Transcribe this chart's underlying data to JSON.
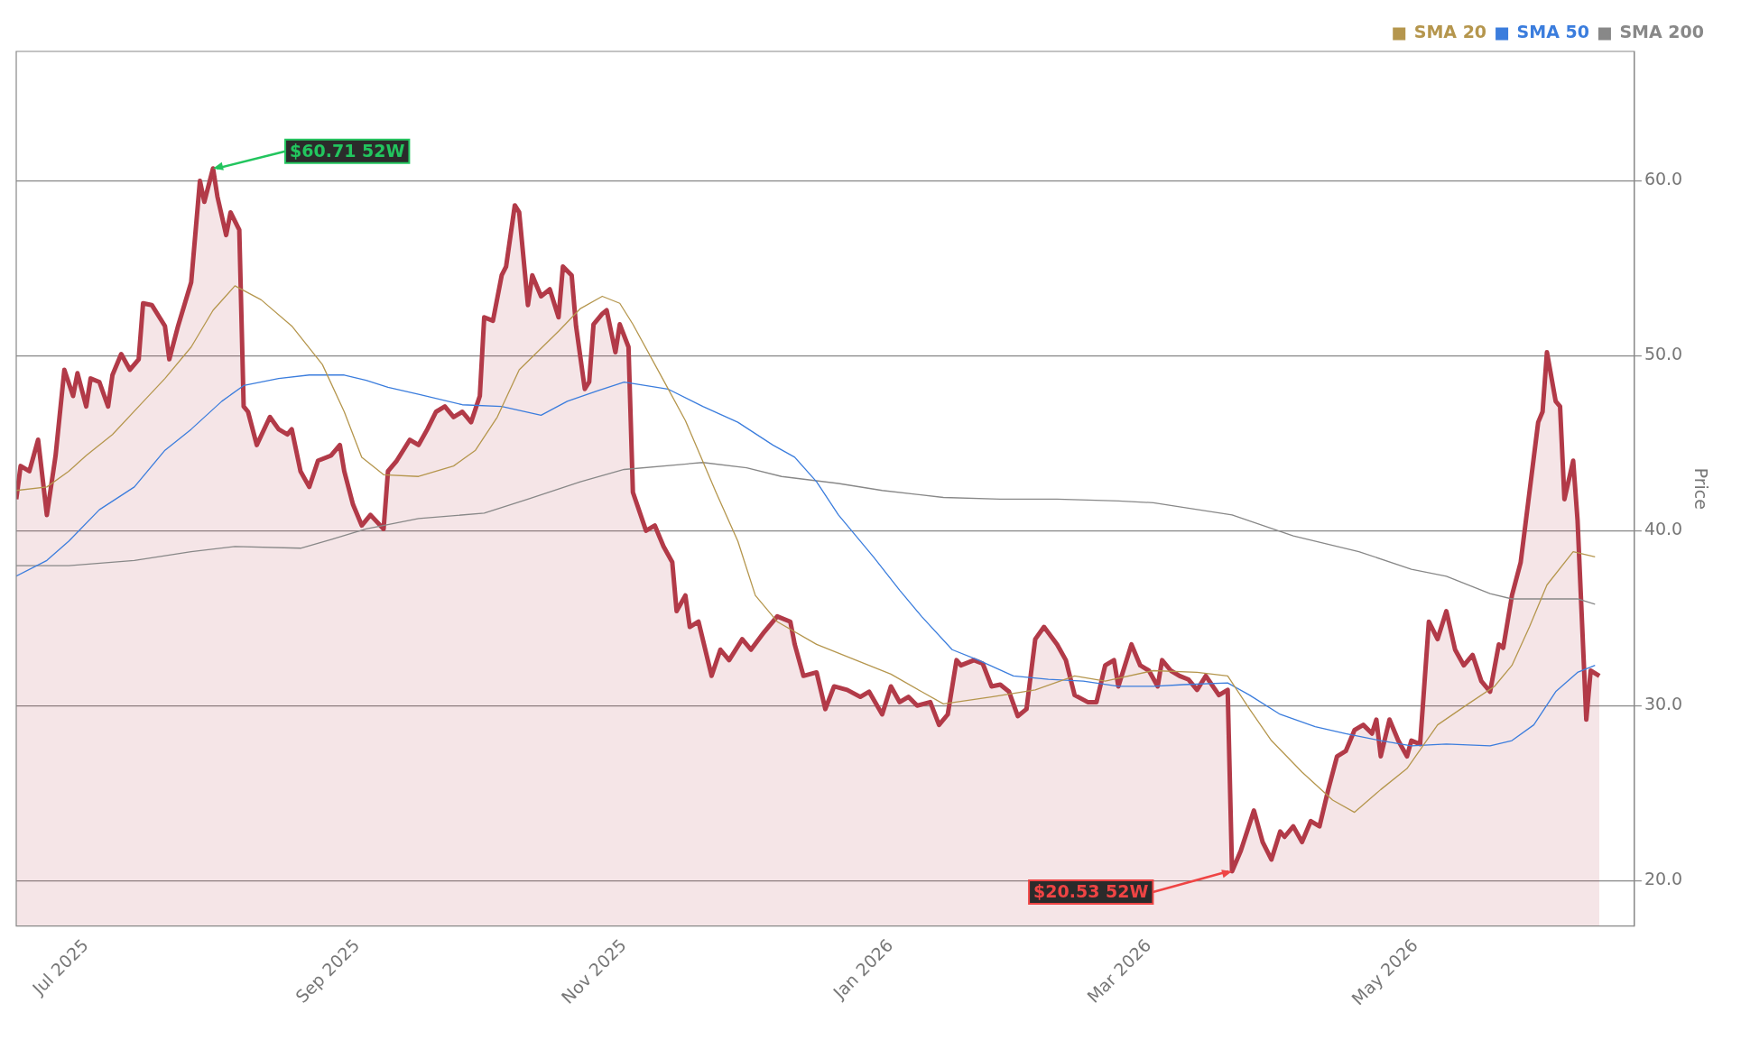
{
  "chart_data": {
    "type": "line",
    "ylabel": "Price",
    "xlim": [
      "2025-06-15",
      "2026-06-20"
    ],
    "ylim": [
      17.4,
      67.4
    ],
    "xticks": [
      {
        "value": "2025-07-01",
        "label": "Jul 2025"
      },
      {
        "value": "2025-09-01",
        "label": "Sep 2025"
      },
      {
        "value": "2025-11-01",
        "label": "Nov 2025"
      },
      {
        "value": "2026-01-01",
        "label": "Jan 2026"
      },
      {
        "value": "2026-03-01",
        "label": "Mar 2026"
      },
      {
        "value": "2026-05-01",
        "label": "May 2026"
      }
    ],
    "yticks": [
      {
        "value": 20,
        "label": "20.0"
      },
      {
        "value": 30,
        "label": "30.0"
      },
      {
        "value": 40,
        "label": "40.0"
      },
      {
        "value": 50,
        "label": "50.0"
      },
      {
        "value": 60,
        "label": "60.0"
      }
    ],
    "grid": "y",
    "legend": "top right",
    "marker": "none",
    "line_style": "solid",
    "annotations": [
      {
        "text": "$60.71 52W",
        "x": "2025-07-30",
        "y": 60.71
      },
      {
        "text": "$20.53 52W",
        "x": "2026-03-20",
        "y": 20.53
      }
    ],
    "series": [
      {
        "type": "area",
        "color": "#b23a48",
        "x": [
          "2025-06-15",
          "2025-06-16",
          "2025-06-18",
          "2025-06-20",
          "2025-06-22",
          "2025-06-24",
          "2025-06-26",
          "2025-06-28",
          "2025-06-29",
          "2025-07-01",
          "2025-07-02",
          "2025-07-04",
          "2025-07-06",
          "2025-07-07",
          "2025-07-09",
          "2025-07-11",
          "2025-07-13",
          "2025-07-14",
          "2025-07-16",
          "2025-07-19",
          "2025-07-20",
          "2025-07-22",
          "2025-07-25",
          "2025-07-27",
          "2025-07-28",
          "2025-07-30",
          "2025-07-31",
          "2025-08-02",
          "2025-08-03",
          "2025-08-05",
          "2025-08-06",
          "2025-08-07",
          "2025-08-09",
          "2025-08-12",
          "2025-08-14",
          "2025-08-16",
          "2025-08-17",
          "2025-08-19",
          "2025-08-21",
          "2025-08-23",
          "2025-08-26",
          "2025-08-28",
          "2025-08-29",
          "2025-08-31",
          "2025-09-02",
          "2025-09-04",
          "2025-09-07",
          "2025-09-08",
          "2025-09-10",
          "2025-09-13",
          "2025-09-15",
          "2025-09-17",
          "2025-09-19",
          "2025-09-21",
          "2025-09-23",
          "2025-09-25",
          "2025-09-27",
          "2025-09-29",
          "2025-09-30",
          "2025-10-02",
          "2025-10-04",
          "2025-10-05",
          "2025-10-07",
          "2025-10-08",
          "2025-10-10",
          "2025-10-11",
          "2025-10-13",
          "2025-10-15",
          "2025-10-17",
          "2025-10-18",
          "2025-10-20",
          "2025-10-21",
          "2025-10-23",
          "2025-10-24",
          "2025-10-25",
          "2025-10-27",
          "2025-10-28",
          "2025-10-30",
          "2025-10-31",
          "2025-11-02",
          "2025-11-03",
          "2025-11-06",
          "2025-11-08",
          "2025-11-10",
          "2025-11-12",
          "2025-11-13",
          "2025-11-15",
          "2025-11-16",
          "2025-11-18",
          "2025-11-21",
          "2025-11-23",
          "2025-11-25",
          "2025-11-28",
          "2025-11-30",
          "2025-12-03",
          "2025-12-06",
          "2025-12-09",
          "2025-12-10",
          "2025-12-12",
          "2025-12-15",
          "2025-12-17",
          "2025-12-19",
          "2025-12-22",
          "2025-12-25",
          "2025-12-27",
          "2025-12-30",
          "2026-01-01",
          "2026-01-03",
          "2026-01-05",
          "2026-01-07",
          "2026-01-10",
          "2026-01-12",
          "2026-01-14",
          "2026-01-16",
          "2026-01-17",
          "2026-01-20",
          "2026-01-22",
          "2026-01-24",
          "2026-01-26",
          "2026-01-28",
          "2026-01-30",
          "2026-02-01",
          "2026-02-03",
          "2026-02-05",
          "2026-02-08",
          "2026-02-10",
          "2026-02-12",
          "2026-02-15",
          "2026-02-17",
          "2026-02-19",
          "2026-02-21",
          "2026-02-22",
          "2026-02-25",
          "2026-02-27",
          "2026-03-01",
          "2026-03-03",
          "2026-03-04",
          "2026-03-06",
          "2026-03-08",
          "2026-03-10",
          "2026-03-12",
          "2026-03-14",
          "2026-03-17",
          "2026-03-19",
          "2026-03-20",
          "2026-03-22",
          "2026-03-25",
          "2026-03-27",
          "2026-03-29",
          "2026-03-31",
          "2026-04-01",
          "2026-04-03",
          "2026-04-05",
          "2026-04-07",
          "2026-04-09",
          "2026-04-11",
          "2026-04-13",
          "2026-04-15",
          "2026-04-17",
          "2026-04-19",
          "2026-04-21",
          "2026-04-22",
          "2026-04-23",
          "2026-04-25",
          "2026-04-27",
          "2026-04-29",
          "2026-04-30",
          "2026-05-02",
          "2026-05-04",
          "2026-05-06",
          "2026-05-08",
          "2026-05-10",
          "2026-05-12",
          "2026-05-14",
          "2026-05-16",
          "2026-05-18",
          "2026-05-20",
          "2026-05-21",
          "2026-05-23",
          "2026-05-25",
          "2026-05-27",
          "2026-05-29",
          "2026-05-30",
          "2026-05-31",
          "2026-06-02",
          "2026-06-03",
          "2026-06-04",
          "2026-06-06",
          "2026-06-07",
          "2026-06-09",
          "2026-06-10",
          "2026-06-12"
        ],
        "values": [
          41.8,
          43.7,
          43.4,
          45.2,
          40.9,
          44.3,
          49.2,
          47.7,
          49.0,
          47.1,
          48.7,
          48.5,
          47.1,
          48.9,
          50.1,
          49.2,
          49.8,
          53.0,
          52.9,
          51.7,
          49.8,
          51.7,
          54.2,
          60.0,
          58.8,
          60.71,
          59.1,
          56.9,
          58.2,
          57.2,
          47.1,
          46.8,
          44.9,
          46.5,
          45.8,
          45.5,
          45.8,
          43.4,
          42.5,
          44.0,
          44.3,
          44.9,
          43.4,
          41.5,
          40.3,
          40.9,
          40.1,
          43.4,
          44.0,
          45.2,
          44.9,
          45.8,
          46.8,
          47.1,
          46.5,
          46.8,
          46.2,
          47.7,
          52.2,
          52.0,
          54.6,
          55.1,
          58.6,
          58.2,
          52.9,
          54.6,
          53.4,
          53.8,
          52.2,
          55.1,
          54.6,
          51.7,
          48.1,
          48.5,
          51.8,
          52.4,
          52.6,
          50.2,
          51.8,
          50.5,
          42.2,
          40.0,
          40.3,
          39.1,
          38.2,
          35.4,
          36.3,
          34.5,
          34.8,
          31.7,
          33.2,
          32.6,
          33.8,
          33.2,
          34.2,
          35.1,
          34.8,
          33.5,
          31.7,
          31.9,
          29.8,
          31.1,
          30.9,
          30.5,
          30.8,
          29.5,
          31.1,
          30.2,
          30.5,
          30.0,
          30.2,
          28.9,
          29.5,
          32.6,
          32.3,
          32.6,
          32.4,
          31.1,
          31.2,
          30.8,
          29.4,
          29.8,
          33.8,
          34.5,
          33.5,
          32.6,
          30.6,
          30.2,
          30.2,
          32.3,
          32.6,
          31.1,
          33.5,
          32.3,
          32.0,
          31.1,
          32.6,
          32.0,
          31.7,
          31.5,
          30.9,
          31.7,
          30.6,
          30.9,
          20.53,
          21.7,
          24.0,
          22.2,
          21.2,
          22.8,
          22.5,
          23.1,
          22.2,
          23.4,
          23.1,
          25.2,
          27.1,
          27.4,
          28.6,
          28.9,
          28.4,
          29.2,
          27.1,
          29.2,
          28.0,
          27.1,
          28.0,
          27.8,
          34.8,
          33.8,
          35.4,
          33.2,
          32.3,
          32.9,
          31.4,
          30.8,
          33.5,
          33.3,
          36.3,
          38.2,
          42.2,
          46.2,
          46.8,
          50.2,
          47.4,
          47.1,
          41.8,
          44.0,
          40.6,
          29.2,
          32.0,
          31.7
        ]
      },
      {
        "name": "SMA 20",
        "type": "line",
        "color": "#b5964d",
        "x": [
          "2025-06-15",
          "2025-06-22",
          "2025-06-27",
          "2025-07-01",
          "2025-07-07",
          "2025-07-13",
          "2025-07-19",
          "2025-07-25",
          "2025-07-30",
          "2025-08-04",
          "2025-08-10",
          "2025-08-17",
          "2025-08-24",
          "2025-08-29",
          "2025-09-02",
          "2025-09-07",
          "2025-09-15",
          "2025-09-23",
          "2025-09-28",
          "2025-10-03",
          "2025-10-08",
          "2025-10-17",
          "2025-10-22",
          "2025-10-27",
          "2025-10-31",
          "2025-11-03",
          "2025-11-10",
          "2025-11-15",
          "2025-11-22",
          "2025-11-27",
          "2025-12-01",
          "2025-12-06",
          "2025-12-15",
          "2025-12-24",
          "2026-01-01",
          "2026-01-08",
          "2026-01-13",
          "2026-01-24",
          "2026-02-03",
          "2026-02-12",
          "2026-02-19",
          "2026-03-02",
          "2026-03-12",
          "2026-03-19",
          "2026-03-24",
          "2026-03-29",
          "2026-04-05",
          "2026-04-12",
          "2026-04-17",
          "2026-04-23",
          "2026-04-29",
          "2026-05-06",
          "2026-05-13",
          "2026-05-19",
          "2026-05-23",
          "2026-05-27",
          "2026-05-31",
          "2026-06-06",
          "2026-06-11"
        ],
        "values": [
          42.3,
          42.5,
          43.4,
          44.3,
          45.5,
          47.1,
          48.7,
          50.5,
          52.6,
          54.0,
          53.2,
          51.7,
          49.5,
          46.8,
          44.2,
          43.2,
          43.1,
          43.7,
          44.6,
          46.5,
          49.2,
          51.4,
          52.7,
          53.4,
          53.0,
          51.8,
          48.6,
          46.3,
          42.2,
          39.4,
          36.3,
          34.8,
          33.5,
          32.6,
          31.8,
          30.8,
          30.1,
          30.5,
          30.9,
          31.7,
          31.4,
          32.0,
          31.9,
          31.7,
          29.8,
          28.0,
          26.2,
          24.6,
          23.9,
          25.2,
          26.4,
          28.9,
          30.1,
          31.1,
          32.3,
          34.5,
          36.9,
          38.8,
          38.5
        ]
      },
      {
        "name": "SMA 50",
        "type": "line",
        "color": "#3b7ddd",
        "x": [
          "2025-06-15",
          "2025-06-22",
          "2025-06-27",
          "2025-07-04",
          "2025-07-12",
          "2025-07-19",
          "2025-07-25",
          "2025-08-01",
          "2025-08-06",
          "2025-08-14",
          "2025-08-21",
          "2025-08-29",
          "2025-09-03",
          "2025-09-08",
          "2025-09-15",
          "2025-09-25",
          "2025-10-04",
          "2025-10-13",
          "2025-10-19",
          "2025-10-26",
          "2025-11-01",
          "2025-11-11",
          "2025-11-19",
          "2025-11-27",
          "2025-12-05",
          "2025-12-10",
          "2025-12-15",
          "2025-12-20",
          "2025-12-28",
          "2026-01-03",
          "2026-01-08",
          "2026-01-15",
          "2026-01-21",
          "2026-01-29",
          "2026-02-06",
          "2026-02-14",
          "2026-02-22",
          "2026-03-02",
          "2026-03-09",
          "2026-03-19",
          "2026-03-24",
          "2026-03-31",
          "2026-04-08",
          "2026-04-15",
          "2026-04-23",
          "2026-04-30",
          "2026-05-08",
          "2026-05-18",
          "2026-05-23",
          "2026-05-28",
          "2026-06-02",
          "2026-06-07",
          "2026-06-11"
        ],
        "values": [
          37.4,
          38.3,
          39.4,
          41.2,
          42.5,
          44.6,
          45.8,
          47.4,
          48.3,
          48.7,
          48.9,
          48.9,
          48.6,
          48.2,
          47.8,
          47.2,
          47.1,
          46.6,
          47.4,
          48.0,
          48.5,
          48.1,
          47.1,
          46.2,
          44.9,
          44.2,
          42.8,
          40.9,
          38.5,
          36.6,
          35.1,
          33.2,
          32.6,
          31.7,
          31.5,
          31.4,
          31.1,
          31.1,
          31.2,
          31.3,
          30.6,
          29.5,
          28.8,
          28.4,
          28.0,
          27.7,
          27.8,
          27.7,
          28.0,
          28.9,
          30.8,
          31.9,
          32.3
        ]
      },
      {
        "name": "SMA 200",
        "type": "line",
        "color": "#888888",
        "x": [
          "2025-06-15",
          "2025-06-27",
          "2025-07-12",
          "2025-07-25",
          "2025-08-04",
          "2025-08-19",
          "2025-08-26",
          "2025-09-03",
          "2025-09-15",
          "2025-09-30",
          "2025-10-10",
          "2025-10-22",
          "2025-11-01",
          "2025-11-19",
          "2025-11-29",
          "2025-12-07",
          "2025-12-20",
          "2025-12-30",
          "2026-01-13",
          "2026-01-26",
          "2026-02-08",
          "2026-02-22",
          "2026-03-02",
          "2026-03-20",
          "2026-04-03",
          "2026-04-18",
          "2026-04-30",
          "2026-05-08",
          "2026-05-18",
          "2026-05-23",
          "2026-06-02",
          "2026-06-07",
          "2026-06-11"
        ],
        "values": [
          38.0,
          38.0,
          38.3,
          38.8,
          39.1,
          39.0,
          39.5,
          40.1,
          40.7,
          41.0,
          41.8,
          42.8,
          43.5,
          43.9,
          43.6,
          43.1,
          42.7,
          42.3,
          41.9,
          41.8,
          41.8,
          41.7,
          41.6,
          40.9,
          39.7,
          38.8,
          37.8,
          37.4,
          36.4,
          36.1,
          36.1,
          36.1,
          35.8
        ]
      }
    ]
  }
}
